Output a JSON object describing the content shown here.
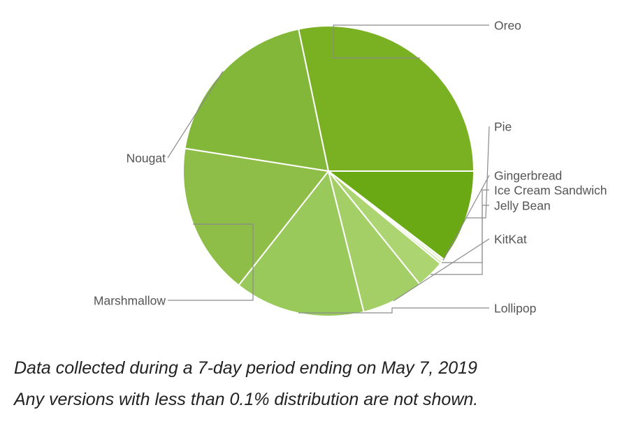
{
  "chart_data": {
    "type": "pie",
    "title": "",
    "slices": [
      {
        "name": "Pie",
        "value": 10.4
      },
      {
        "name": "Gingerbread",
        "value": 0.3
      },
      {
        "name": "Ice Cream Sandwich",
        "value": 0.3
      },
      {
        "name": "Jelly Bean",
        "value": 3.2
      },
      {
        "name": "KitKat",
        "value": 6.9
      },
      {
        "name": "Lollipop",
        "value": 14.5
      },
      {
        "name": "Marshmallow",
        "value": 16.9
      },
      {
        "name": "Nougat",
        "value": 19.2
      },
      {
        "name": "Oreo",
        "value": 28.3
      }
    ],
    "legend": "none"
  },
  "captions": {
    "line1": "Data collected during a 7-day period ending on May 7, 2019",
    "line2": "Any versions with less than 0.1% distribution are not shown."
  },
  "colors": {
    "Pie": "#6aa814",
    "Gingerbread": "#e4f1cf",
    "Ice Cream Sandwich": "#cde6a8",
    "Jelly Bean": "#acd571",
    "KitKat": "#a3cf66",
    "Lollipop": "#99c95a",
    "Marshmallow": "#8ebe47",
    "Nougat": "#83b73a",
    "Oreo": "#79b123",
    "slice_border": "#ffffff",
    "leader_line": "#8a8a8a",
    "label_text": "#555555",
    "caption_text": "#222222"
  }
}
